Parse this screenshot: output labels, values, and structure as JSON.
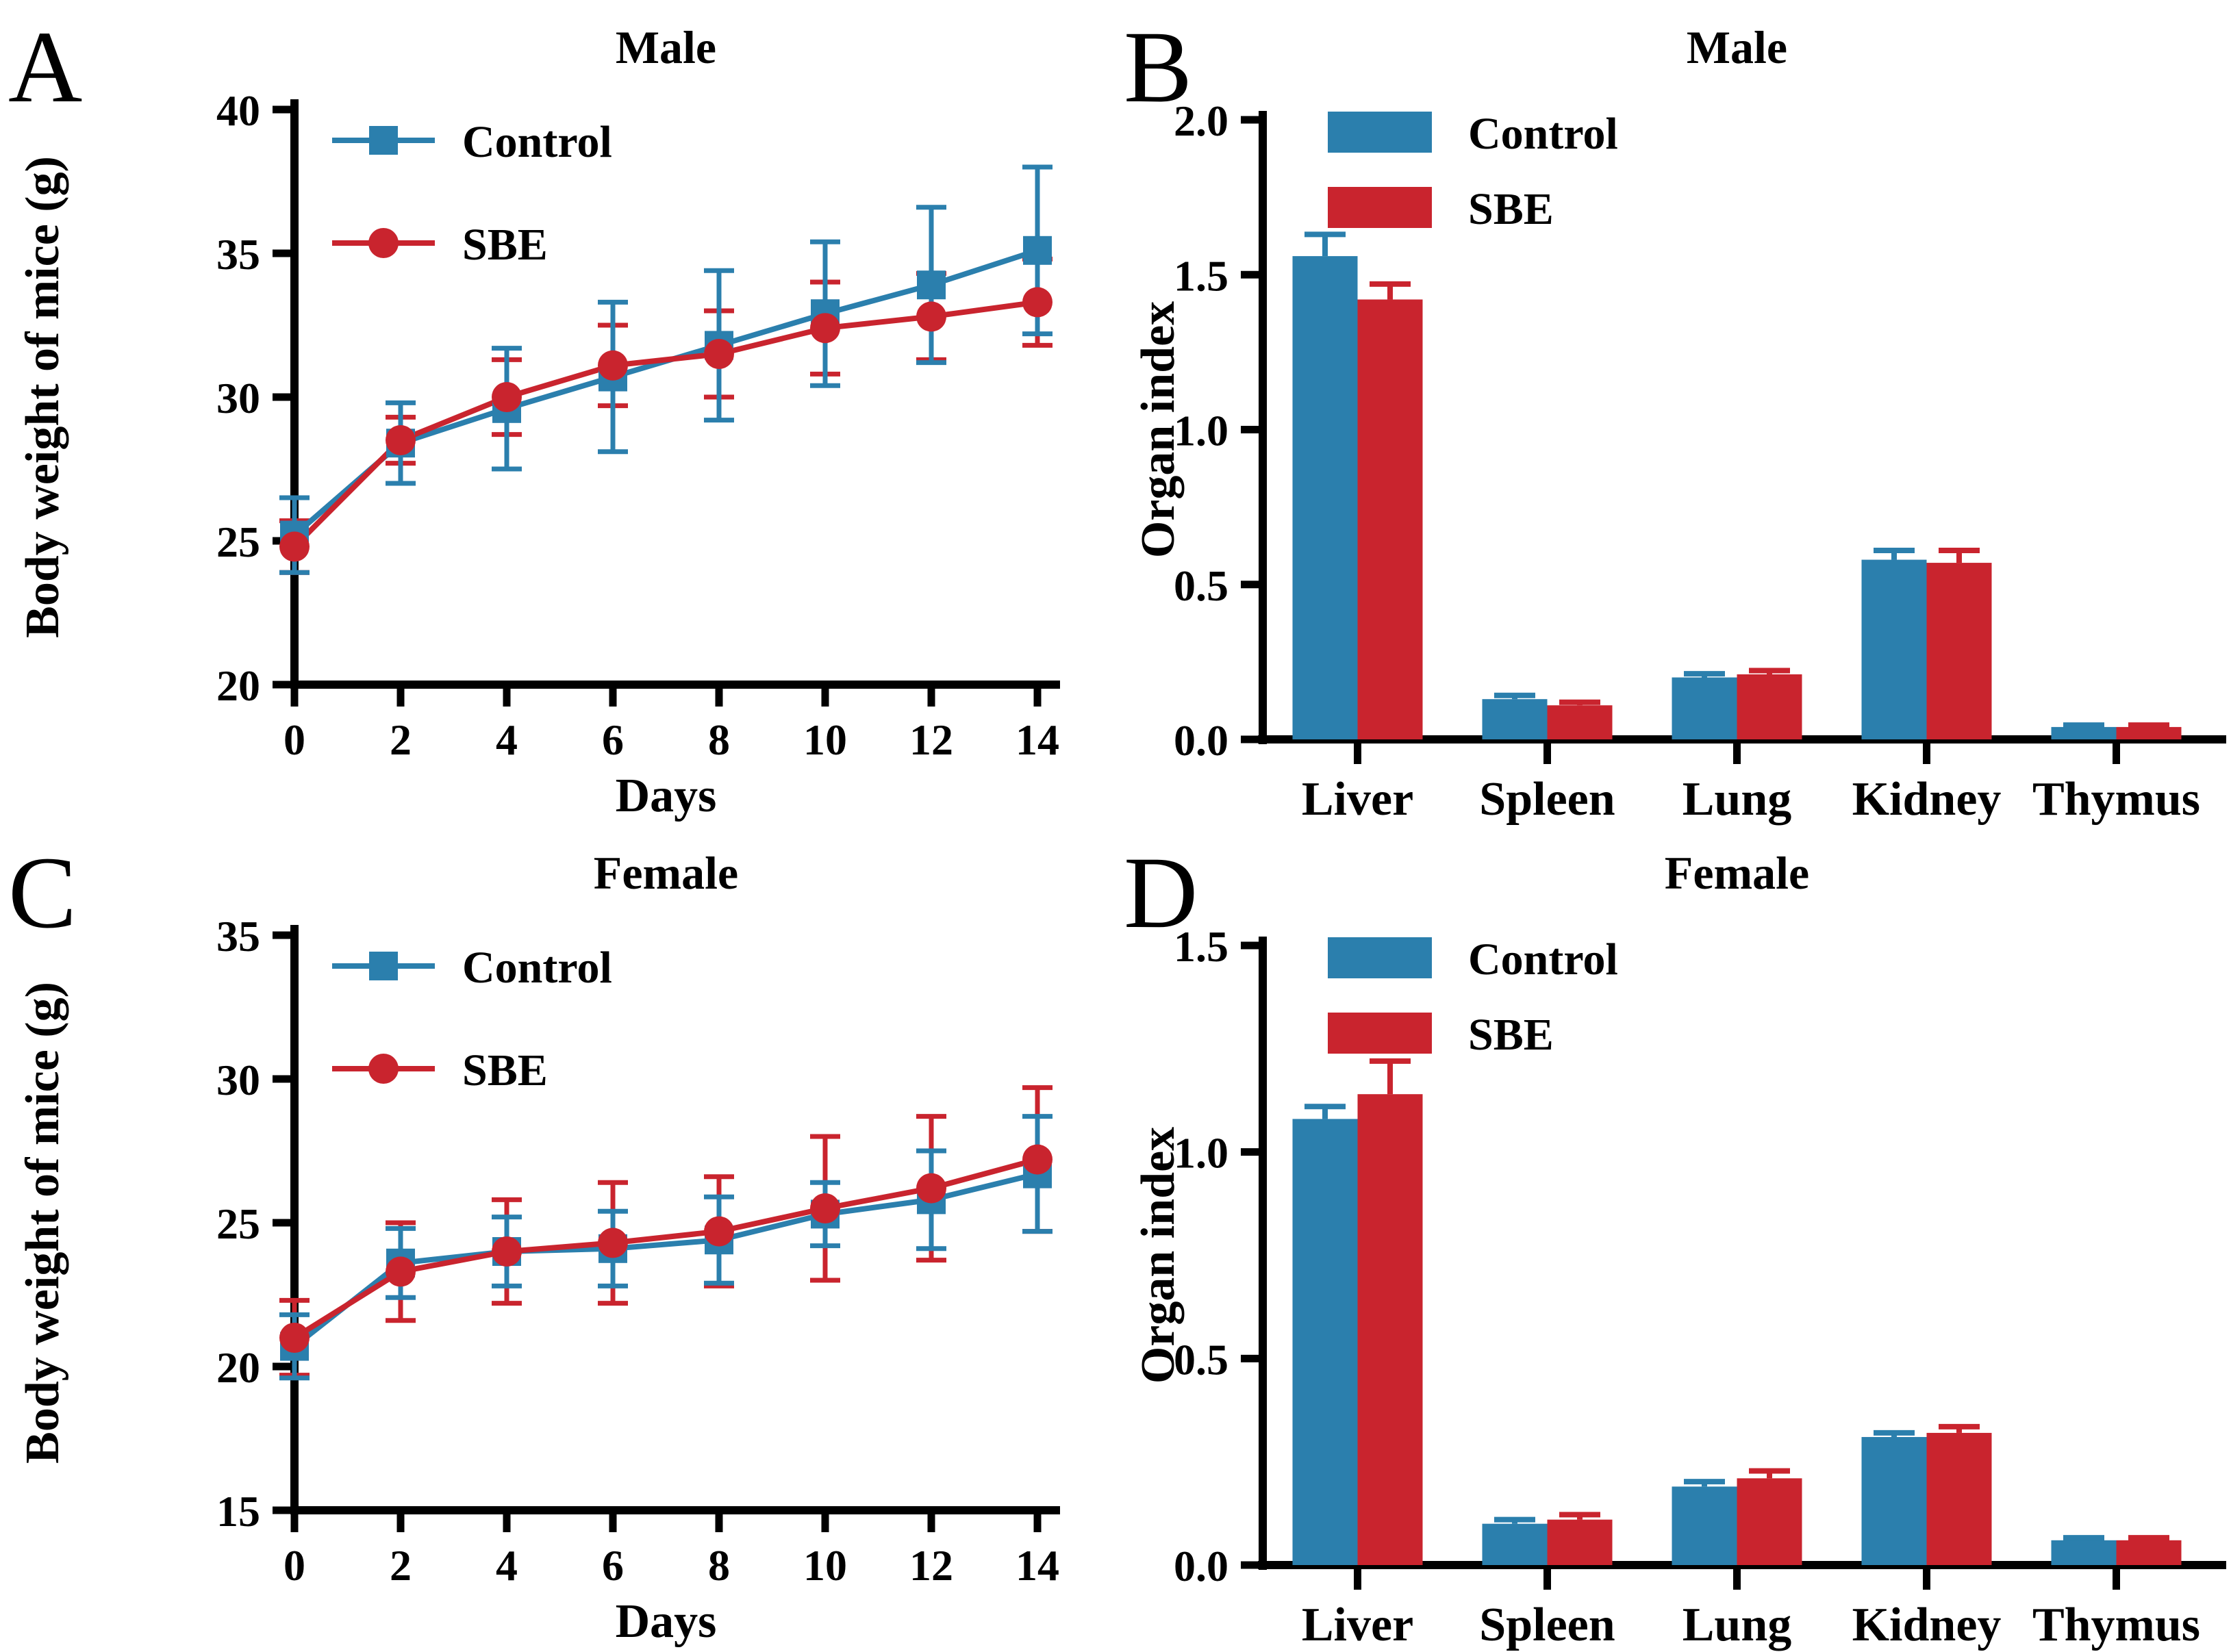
{
  "colors": {
    "control": "#2b7fad",
    "sbe": "#c9242e",
    "axis": "#000000"
  },
  "chart_data": [
    {
      "panel": "A",
      "letter": "A",
      "type": "line",
      "title": "Male",
      "xlabel": "Days",
      "ylabel": "Body weight of mice (g)",
      "xlim": [
        0,
        14
      ],
      "ylim": [
        20,
        40
      ],
      "x": [
        0,
        2,
        4,
        6,
        8,
        10,
        12,
        14
      ],
      "xtick_labels": [
        "0",
        "2",
        "4",
        "6",
        "8",
        "10",
        "12",
        "14"
      ],
      "ytick_vals": [
        20,
        25,
        30,
        35,
        40
      ],
      "ytick_labels": [
        "20",
        "25",
        "30",
        "35",
        "40"
      ],
      "legend_position": "top-left-inside",
      "grid": false,
      "series": [
        {
          "name": "Control",
          "color": "control",
          "marker": "square",
          "values": [
            25.2,
            28.4,
            29.6,
            30.7,
            31.8,
            32.9,
            33.9,
            35.1
          ],
          "err": [
            1.3,
            1.4,
            2.1,
            2.6,
            2.6,
            2.5,
            2.7,
            2.9
          ]
        },
        {
          "name": "SBE",
          "color": "sbe",
          "marker": "circle",
          "values": [
            24.8,
            28.5,
            30.0,
            31.1,
            31.5,
            32.4,
            32.8,
            33.3
          ],
          "err": [
            0.9,
            0.8,
            1.3,
            1.4,
            1.5,
            1.6,
            1.5,
            1.5
          ]
        }
      ]
    },
    {
      "panel": "B",
      "letter": "B",
      "type": "bar",
      "title": "Male",
      "xlabel": "",
      "ylabel": "Organ index",
      "ylim": [
        0,
        2.0
      ],
      "categories": [
        "Liver",
        "Spleen",
        "Lung",
        "Kidney",
        "Thymus"
      ],
      "ytick_vals": [
        0,
        0.5,
        1.0,
        1.5,
        2.0
      ],
      "ytick_labels": [
        "0.0",
        "0.5",
        "1.0",
        "1.5",
        "2.0"
      ],
      "legend_position": "top-left-inside",
      "grid": false,
      "series": [
        {
          "name": "Control",
          "color": "control",
          "values": [
            1.56,
            0.13,
            0.2,
            0.58,
            0.04
          ],
          "err": [
            0.07,
            0.012,
            0.012,
            0.03,
            0.006
          ]
        },
        {
          "name": "SBE",
          "color": "sbe",
          "values": [
            1.42,
            0.11,
            0.21,
            0.57,
            0.04
          ],
          "err": [
            0.05,
            0.01,
            0.012,
            0.04,
            0.006
          ]
        }
      ]
    },
    {
      "panel": "C",
      "letter": "C",
      "type": "line",
      "title": "Female",
      "xlabel": "Days",
      "ylabel": "Body weight of mice (g)",
      "xlim": [
        0,
        14
      ],
      "ylim": [
        15,
        35
      ],
      "x": [
        0,
        2,
        4,
        6,
        8,
        10,
        12,
        14
      ],
      "xtick_labels": [
        "0",
        "2",
        "4",
        "6",
        "8",
        "10",
        "12",
        "14"
      ],
      "ytick_vals": [
        15,
        20,
        25,
        30,
        35
      ],
      "ytick_labels": [
        "15",
        "20",
        "25",
        "30",
        "35"
      ],
      "legend_position": "top-left-inside",
      "grid": false,
      "series": [
        {
          "name": "Control",
          "color": "control",
          "marker": "square",
          "values": [
            20.7,
            23.6,
            24.0,
            24.1,
            24.4,
            25.3,
            25.8,
            26.7
          ],
          "err": [
            1.1,
            1.2,
            1.2,
            1.3,
            1.5,
            1.1,
            1.7,
            2.0
          ]
        },
        {
          "name": "SBE",
          "color": "sbe",
          "marker": "circle",
          "values": [
            21.0,
            23.3,
            24.0,
            24.3,
            24.7,
            25.5,
            26.2,
            27.2
          ],
          "err": [
            1.3,
            1.7,
            1.8,
            2.1,
            1.9,
            2.5,
            2.5,
            2.5
          ]
        }
      ]
    },
    {
      "panel": "D",
      "letter": "D",
      "type": "bar",
      "title": "Female",
      "xlabel": "",
      "ylabel": "Organ index",
      "ylim": [
        0,
        1.5
      ],
      "categories": [
        "Liver",
        "Spleen",
        "Lung",
        "Kidney",
        "Thymus"
      ],
      "ytick_vals": [
        0,
        0.5,
        1.0,
        1.5
      ],
      "ytick_labels": [
        "0.0",
        "0.5",
        "1.0",
        "1.5"
      ],
      "legend_position": "top-left-inside",
      "grid": false,
      "series": [
        {
          "name": "Control",
          "color": "control",
          "values": [
            1.08,
            0.1,
            0.19,
            0.31,
            0.06
          ],
          "err": [
            0.03,
            0.01,
            0.012,
            0.01,
            0.006
          ]
        },
        {
          "name": "SBE",
          "color": "sbe",
          "values": [
            1.14,
            0.11,
            0.21,
            0.32,
            0.06
          ],
          "err": [
            0.08,
            0.012,
            0.018,
            0.015,
            0.006
          ]
        }
      ]
    }
  ]
}
